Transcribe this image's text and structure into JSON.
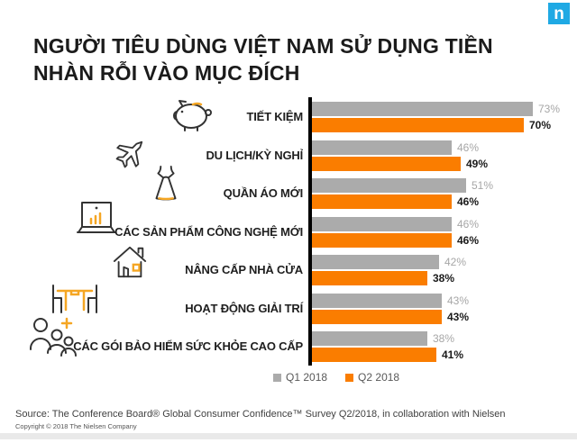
{
  "logo": {
    "letter": "n",
    "color": "#1FA9E4"
  },
  "title": "NGƯỜI TIÊU DÙNG VIỆT NAM SỬ DỤNG TIỀN\nNHÀN RỖI VÀO MỤC ĐÍCH",
  "chart_data": {
    "type": "bar",
    "orientation": "horizontal",
    "title": "NGƯỜI TIÊU DÙNG VIỆT NAM SỬ DỤNG TIỀN NHÀN RỖI VÀO MỤC ĐÍCH",
    "categories": [
      "TIẾT KIỆM",
      "DU LỊCH/KỲ NGHỈ",
      "QUẦN ÁO MỚI",
      "CÁC SẢN PHẨM CÔNG NGHỆ MỚI",
      "NÂNG CẤP NHÀ CỬA",
      "HOẠT ĐỘNG GIẢI TRÍ",
      "CÁC GÓI BẢO HIỂM SỨC KHỎE CAO CẤP"
    ],
    "category_icons": [
      "piggy-bank",
      "airplane",
      "dress",
      "monitor-chart",
      "house",
      "table-chairs",
      "family-plus"
    ],
    "series": [
      {
        "name": "Q1 2018",
        "color": "#ABABAB",
        "values": [
          73,
          46,
          51,
          46,
          42,
          43,
          38
        ]
      },
      {
        "name": "Q2 2018",
        "color": "#FA7D00",
        "values": [
          70,
          49,
          46,
          46,
          38,
          43,
          41
        ]
      }
    ],
    "value_suffix": "%",
    "xlim": [
      0,
      80
    ],
    "grid": false,
    "legend_position": "bottom",
    "value_label_colors": {
      "q1": "#A6A6A6",
      "q2": "#1A1A1A"
    },
    "icon_accent_color": "#F5A623"
  },
  "footer": {
    "source": "Source: The Conference Board® Global Consumer Confidence™ Survey Q2/2018, in collaboration with Nielsen",
    "copyright": "Copyright © 2018 The Nielsen Company"
  }
}
